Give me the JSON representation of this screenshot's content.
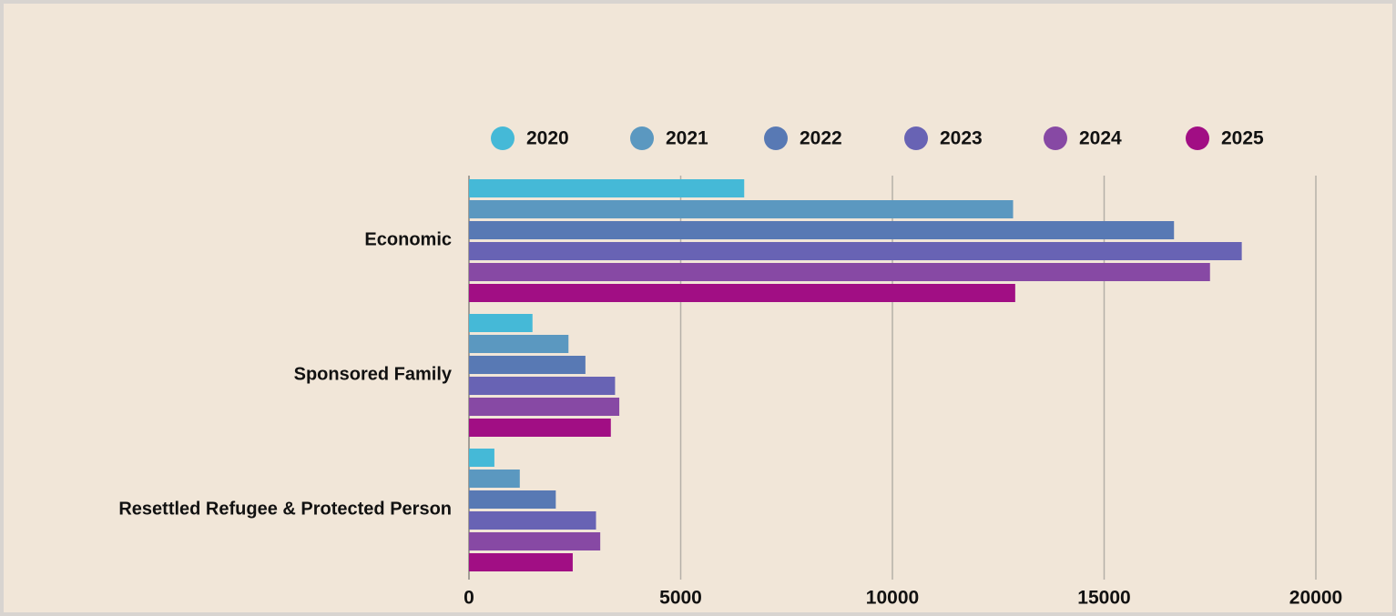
{
  "chart_data": {
    "type": "hbar",
    "categories": [
      "Economic",
      "Sponsored Family",
      "Resettled Refugee & Protected Person"
    ],
    "series": [
      {
        "name": "2020",
        "color": "#45b9d7",
        "values": [
          6500,
          1500,
          600
        ]
      },
      {
        "name": "2021",
        "color": "#5b98c0",
        "values": [
          12850,
          2350,
          1200
        ]
      },
      {
        "name": "2022",
        "color": "#5879b4",
        "values": [
          16650,
          2750,
          2050
        ]
      },
      {
        "name": "2023",
        "color": "#6863b4",
        "values": [
          18250,
          3450,
          3000
        ]
      },
      {
        "name": "2024",
        "color": "#8749a4",
        "values": [
          17500,
          3550,
          3100
        ]
      },
      {
        "name": "2025",
        "color": "#a10e84",
        "values": [
          12900,
          3350,
          2450
        ]
      }
    ],
    "xlim": [
      0,
      20000
    ],
    "xticks": [
      0,
      5000,
      10000,
      15000,
      20000
    ],
    "grid": true,
    "legend": "top"
  }
}
